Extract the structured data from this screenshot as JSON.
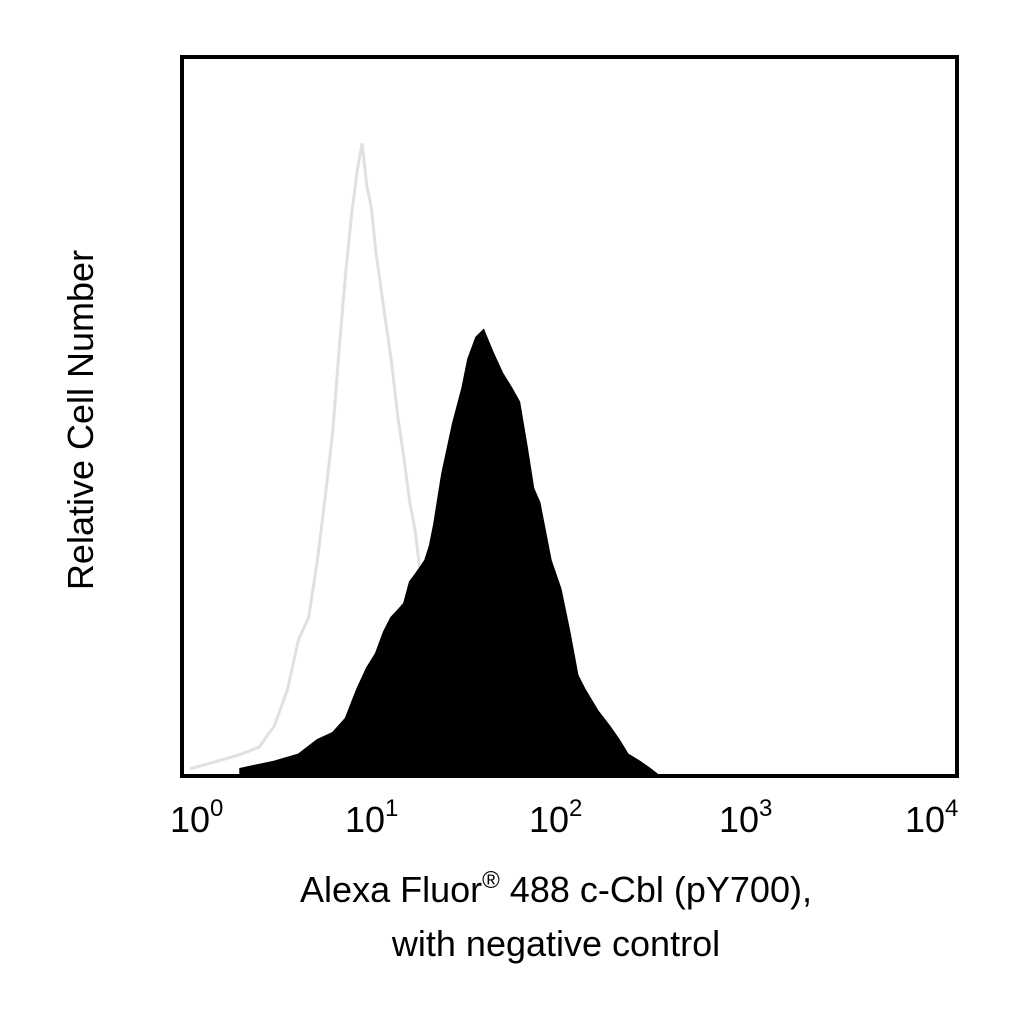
{
  "chart_data": {
    "type": "area",
    "x_scale": "log",
    "xlim": [
      1,
      10000
    ],
    "x_ticks": [
      {
        "base": "10",
        "exp": "0"
      },
      {
        "base": "10",
        "exp": "1"
      },
      {
        "base": "10",
        "exp": "2"
      },
      {
        "base": "10",
        "exp": "3"
      },
      {
        "base": "10",
        "exp": "4"
      }
    ],
    "xlabel_line1_main": "Alexa Fluor",
    "xlabel_line1_sup": "®",
    "xlabel_line1_rest": " 488 c-Cbl (pY700),",
    "xlabel_line2": "with negative control",
    "ylabel": "Relative Cell Number",
    "ylim": [
      0,
      100
    ],
    "grid": false,
    "series": [
      {
        "style": "outline",
        "color": "#e0e0e0",
        "x": [
          1.1,
          1.5,
          2,
          2.5,
          3,
          3.5,
          4,
          4.5,
          5,
          5.5,
          6,
          6.5,
          7,
          7.5,
          8,
          8.5,
          9,
          9.5,
          10,
          11,
          12,
          13,
          14,
          15,
          16,
          17,
          18,
          19,
          20,
          22,
          24,
          26,
          28,
          30
        ],
        "values": [
          1,
          2,
          3,
          4,
          7,
          12,
          19,
          22,
          30,
          39,
          48,
          60,
          70,
          78,
          84,
          88,
          82,
          79,
          73,
          65,
          58,
          50,
          44,
          38,
          34,
          28,
          22,
          16,
          10,
          5,
          3,
          2,
          1,
          0
        ]
      },
      {
        "style": "filled",
        "color": "#000000",
        "x": [
          2,
          3,
          4,
          5,
          6,
          7,
          8,
          9,
          10,
          11,
          12,
          13,
          14,
          15,
          16,
          17,
          18,
          19,
          20,
          22,
          25,
          28,
          30,
          33,
          36,
          40,
          45,
          50,
          55,
          60,
          65,
          70,
          80,
          90,
          100,
          110,
          120,
          140,
          160,
          180,
          200,
          230,
          260,
          290
        ],
        "values": [
          1,
          2,
          3,
          5,
          6,
          8,
          12,
          15,
          17,
          20,
          22,
          23,
          24,
          27,
          28,
          29,
          30,
          32,
          35,
          42,
          49,
          54,
          58,
          61,
          62,
          59,
          56,
          54,
          52,
          46,
          40,
          38,
          30,
          26,
          20,
          14,
          12,
          9,
          7,
          5,
          3,
          2,
          1,
          0
        ]
      }
    ]
  }
}
